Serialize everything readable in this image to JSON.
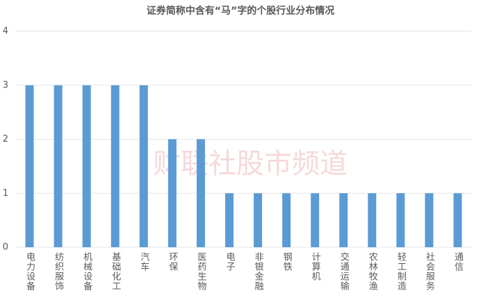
{
  "chart_data": {
    "type": "bar",
    "title": "证券简称中含有“马”字的个股行业分布情况",
    "categories": [
      "电力设备",
      "纺织服饰",
      "机械设备",
      "基础化工",
      "汽车",
      "环保",
      "医药生物",
      "电子",
      "非银金融",
      "钢铁",
      "计算机",
      "交通运输",
      "农林牧渔",
      "轻工制造",
      "社会服务",
      "通信"
    ],
    "values": [
      3,
      3,
      3,
      3,
      3,
      2,
      2,
      1,
      1,
      1,
      1,
      1,
      1,
      1,
      1,
      1
    ],
    "color": "#5b9bd5",
    "ylim": [
      0,
      4
    ],
    "yticks": [
      0,
      1,
      2,
      3,
      4
    ],
    "grid": true,
    "watermark": "财联社股市频道"
  }
}
